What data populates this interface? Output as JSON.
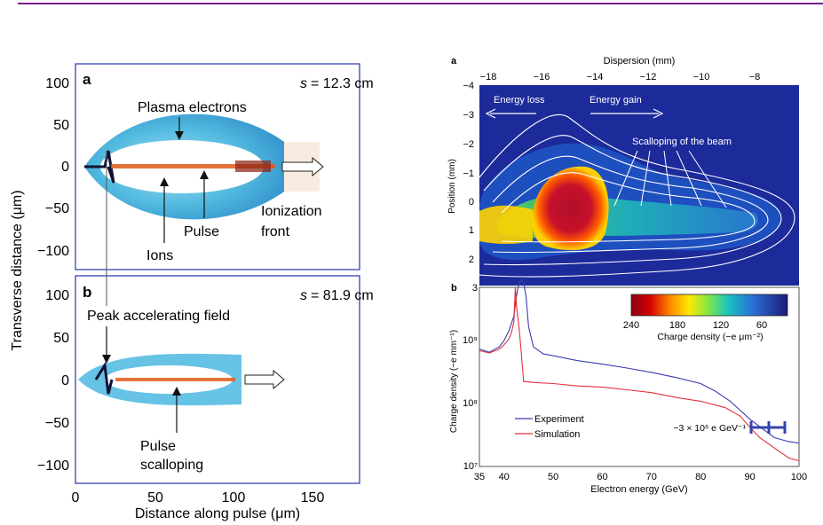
{
  "header": {
    "rule_color": "#7a1f8f"
  },
  "left_figure": {
    "panels": [
      {
        "letter": "a",
        "s_label": "s",
        "s_value": "= 12.3 cm",
        "annotations": [
          "Plasma electrons",
          "Ions",
          "Pulse",
          "Ionization",
          "front"
        ]
      },
      {
        "letter": "b",
        "s_label": "s",
        "s_value": "= 81.9 cm",
        "annotations": [
          "Peak accelerating field",
          "Pulse",
          "scalloping"
        ]
      }
    ],
    "xlabel": "Distance along pulse (μm)",
    "ylabel": "Transverse distance (μm)",
    "x_ticks": [
      "0",
      "50",
      "100",
      "150"
    ],
    "y_ticks": [
      "100",
      "50",
      "0",
      "−50",
      "−100"
    ]
  },
  "right_figure": {
    "panel_a": {
      "letter": "a",
      "top_axis_label": "Dispersion (mm)",
      "top_ticks": [
        "−18",
        "−16",
        "−14",
        "−12",
        "−10",
        "−8"
      ],
      "ylabel": "Position (mm)",
      "y_ticks": [
        "−4",
        "−3",
        "−2",
        "−1",
        "0",
        "1",
        "2"
      ],
      "annotations": [
        "Energy loss",
        "Energy gain",
        "Scalloping of the beam"
      ],
      "colorbar": {
        "ticks": [
          "240",
          "180",
          "120",
          "60"
        ],
        "label": "Charge density (−e μm⁻²)"
      }
    },
    "panel_b": {
      "letter": "b",
      "xlabel": "Electron energy (GeV)",
      "ylabel": "Charge density (−e mm⁻¹)",
      "x_ticks": [
        "35",
        "40",
        "50",
        "60",
        "70",
        "80",
        "90",
        "100"
      ],
      "y_top_tick": "3",
      "y_ticks": [
        "10⁹",
        "10⁸",
        "10⁷"
      ],
      "legend": [
        "Experiment",
        "Simulation"
      ],
      "series_colors": {
        "experiment": "#3a3ab0",
        "simulation": "#e0303a"
      },
      "scale_bar_label": "−3 × 10⁶ e GeV⁻¹"
    }
  },
  "chart_data": {
    "type": "line",
    "xlabel": "Electron energy (GeV)",
    "ylabel": "Charge density (−e mm⁻¹)",
    "xlim": [
      35,
      100
    ],
    "ylim": [
      10000000.0,
      3000000000.0
    ],
    "log_y": true,
    "legend_placement": "bottom-left",
    "series": [
      {
        "name": "Experiment",
        "x": [
          35,
          37,
          39,
          40,
          41,
          42,
          42.5,
          43,
          43.5,
          44,
          44.5,
          45,
          46,
          48,
          50,
          55,
          60,
          65,
          70,
          75,
          80,
          83,
          86,
          90,
          95,
          98,
          100
        ],
        "y": [
          420000000.0,
          380000000.0,
          450000000.0,
          550000000.0,
          750000000.0,
          1200000000.0,
          2200000000.0,
          3300000000.0,
          3800000000.0,
          3500000000.0,
          2200000000.0,
          850000000.0,
          450000000.0,
          360000000.0,
          340000000.0,
          290000000.0,
          260000000.0,
          230000000.0,
          200000000.0,
          170000000.0,
          140000000.0,
          110000000.0,
          80000000.0,
          45000000.0,
          25000000.0,
          22000000.0,
          21000000.0
        ]
      },
      {
        "name": "Simulation",
        "x": [
          35,
          37,
          39,
          40,
          41,
          41.5,
          42,
          42.3,
          42.6,
          43,
          43.3,
          44,
          46,
          50,
          55,
          60,
          65,
          70,
          75,
          80,
          85,
          88,
          90,
          92,
          95,
          98,
          100
        ],
        "y": [
          400000000.0,
          370000000.0,
          420000000.0,
          480000000.0,
          580000000.0,
          700000000.0,
          1000000000.0,
          3000000000.0,
          1500000000.0,
          900000000.0,
          550000000.0,
          150000000.0,
          145000000.0,
          140000000.0,
          130000000.0,
          125000000.0,
          115000000.0,
          105000000.0,
          90000000.0,
          80000000.0,
          65000000.0,
          50000000.0,
          35000000.0,
          25000000.0,
          18000000.0,
          13000000.0,
          12000000.0
        ]
      }
    ]
  }
}
